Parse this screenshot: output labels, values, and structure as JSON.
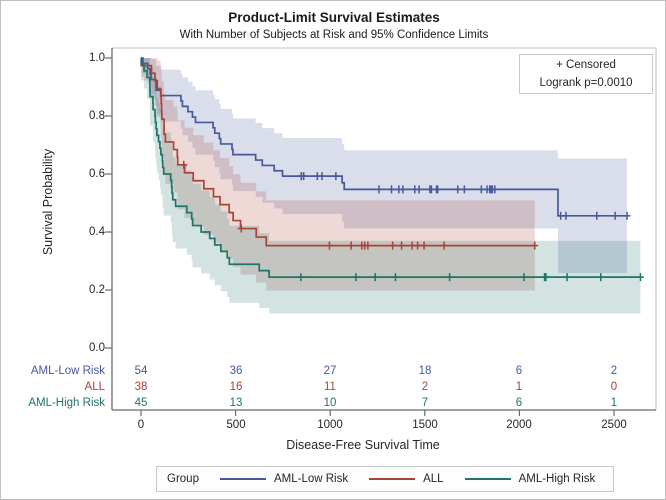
{
  "chart_data": {
    "type": "line",
    "subtype": "kaplan-meier-step",
    "title": "Product-Limit Survival Estimates",
    "subtitle": "With Number of Subjects at Risk and 95% Confidence Limits",
    "xlabel": "Disease-Free Survival Time",
    "ylabel": "Survival Probability",
    "xlim": [
      0,
      2500
    ],
    "ylim": [
      0.0,
      1.0
    ],
    "grid": false,
    "legend_position": "bottom",
    "censored_label": "+ Censored",
    "logrank_label": "Logrank p=0.0010",
    "x_ticks": [
      "0",
      "500",
      "1000",
      "1500",
      "2000",
      "2500"
    ],
    "y_ticks": [
      "1.0",
      "0.8",
      "0.6",
      "0.4",
      "0.2",
      "0.0"
    ],
    "series": [
      {
        "name": "AML-Low Risk",
        "color": "#47589C",
        "band_color": "rgba(71,88,156,0.20)",
        "end_time": 2569,
        "steps": [
          [
            0,
            1
          ],
          [
            10,
            0.9815
          ],
          [
            35,
            0.963
          ],
          [
            48,
            0.9444
          ],
          [
            53,
            0.9259
          ],
          [
            79,
            0.9074
          ],
          [
            80,
            0.8889
          ],
          [
            105,
            0.8704
          ],
          [
            211,
            0.8519
          ],
          [
            219,
            0.8333
          ],
          [
            248,
            0.8148
          ],
          [
            272,
            0.7963
          ],
          [
            288,
            0.7778
          ],
          [
            381,
            0.7593
          ],
          [
            390,
            0.7407
          ],
          [
            414,
            0.7222
          ],
          [
            421,
            0.7037
          ],
          [
            481,
            0.6852
          ],
          [
            486,
            0.6667
          ],
          [
            606,
            0.6481
          ],
          [
            641,
            0.6296
          ],
          [
            704,
            0.6111
          ],
          [
            748,
            0.5926
          ],
          [
            1063,
            0.5698
          ],
          [
            1074,
            0.547
          ],
          [
            2204,
            0.4558
          ]
        ],
        "censored": [
          [
            847,
            0.5926
          ],
          [
            848,
            0.5926
          ],
          [
            860,
            0.5926
          ],
          [
            932,
            0.5926
          ],
          [
            957,
            0.5926
          ],
          [
            1030,
            0.5926
          ],
          [
            1258,
            0.547
          ],
          [
            1324,
            0.547
          ],
          [
            1363,
            0.547
          ],
          [
            1384,
            0.547
          ],
          [
            1447,
            0.547
          ],
          [
            1470,
            0.547
          ],
          [
            1527,
            0.547
          ],
          [
            1535,
            0.547
          ],
          [
            1562,
            0.547
          ],
          [
            1568,
            0.547
          ],
          [
            1674,
            0.547
          ],
          [
            1709,
            0.547
          ],
          [
            1799,
            0.547
          ],
          [
            1829,
            0.547
          ],
          [
            1843,
            0.547
          ],
          [
            1850,
            0.547
          ],
          [
            1857,
            0.547
          ],
          [
            1870,
            0.547
          ],
          [
            2218,
            0.4558
          ],
          [
            2246,
            0.4558
          ],
          [
            2409,
            0.4558
          ],
          [
            2506,
            0.4558
          ],
          [
            2569,
            0.4558
          ]
        ],
        "ci": [
          [
            0,
            1,
            1
          ],
          [
            10,
            0.946,
            1
          ],
          [
            35,
            0.913,
            1
          ],
          [
            48,
            0.883,
            1
          ],
          [
            53,
            0.856,
            0.996
          ],
          [
            79,
            0.83,
            0.985
          ],
          [
            80,
            0.805,
            0.973
          ],
          [
            105,
            0.781,
            0.96
          ],
          [
            211,
            0.757,
            0.947
          ],
          [
            219,
            0.734,
            0.933
          ],
          [
            248,
            0.711,
            0.918
          ],
          [
            272,
            0.689,
            0.904
          ],
          [
            288,
            0.667,
            0.889
          ],
          [
            381,
            0.645,
            0.873
          ],
          [
            390,
            0.624,
            0.858
          ],
          [
            414,
            0.603,
            0.842
          ],
          [
            421,
            0.582,
            0.825
          ],
          [
            481,
            0.561,
            0.809
          ],
          [
            486,
            0.541,
            0.792
          ],
          [
            606,
            0.521,
            0.776
          ],
          [
            641,
            0.501,
            0.758
          ],
          [
            704,
            0.481,
            0.741
          ],
          [
            748,
            0.462,
            0.724
          ],
          [
            1063,
            0.436,
            0.703
          ],
          [
            1074,
            0.412,
            0.682
          ],
          [
            2204,
            0.258,
            0.654
          ]
        ]
      },
      {
        "name": "ALL",
        "color": "#A94338",
        "band_color": "rgba(169,67,56,0.20)",
        "end_time": 2081,
        "steps": [
          [
            0,
            1
          ],
          [
            1,
            0.9737
          ],
          [
            55,
            0.9474
          ],
          [
            74,
            0.9211
          ],
          [
            86,
            0.8947
          ],
          [
            104,
            0.8684
          ],
          [
            107,
            0.8421
          ],
          [
            109,
            0.8158
          ],
          [
            110,
            0.7895
          ],
          [
            122,
            0.7368
          ],
          [
            129,
            0.7105
          ],
          [
            172,
            0.6842
          ],
          [
            192,
            0.6579
          ],
          [
            194,
            0.6316
          ],
          [
            230,
            0.6041
          ],
          [
            276,
            0.5767
          ],
          [
            332,
            0.5492
          ],
          [
            383,
            0.5217
          ],
          [
            418,
            0.4943
          ],
          [
            466,
            0.4668
          ],
          [
            487,
            0.4394
          ],
          [
            526,
            0.4119
          ],
          [
            609,
            0.3825
          ],
          [
            662,
            0.3531
          ]
        ],
        "censored": [
          [
            226,
            0.6316
          ],
          [
            530,
            0.4119
          ],
          [
            996,
            0.3531
          ],
          [
            1111,
            0.3531
          ],
          [
            1167,
            0.3531
          ],
          [
            1182,
            0.3531
          ],
          [
            1199,
            0.3531
          ],
          [
            1330,
            0.3531
          ],
          [
            1377,
            0.3531
          ],
          [
            1433,
            0.3531
          ],
          [
            1462,
            0.3531
          ],
          [
            1496,
            0.3531
          ],
          [
            1602,
            0.3531
          ],
          [
            2081,
            0.3531
          ]
        ],
        "ci": [
          [
            0,
            1,
            1
          ],
          [
            1,
            0.923,
            1
          ],
          [
            55,
            0.876,
            1
          ],
          [
            74,
            0.835,
            1
          ],
          [
            86,
            0.797,
            0.992
          ],
          [
            104,
            0.761,
            0.976
          ],
          [
            107,
            0.726,
            0.958
          ],
          [
            109,
            0.693,
            0.939
          ],
          [
            110,
            0.66,
            0.919
          ],
          [
            122,
            0.597,
            0.877
          ],
          [
            129,
            0.566,
            0.855
          ],
          [
            172,
            0.536,
            0.832
          ],
          [
            192,
            0.507,
            0.809
          ],
          [
            194,
            0.478,
            0.785
          ],
          [
            230,
            0.448,
            0.76
          ],
          [
            276,
            0.419,
            0.734
          ],
          [
            332,
            0.39,
            0.708
          ],
          [
            383,
            0.362,
            0.682
          ],
          [
            418,
            0.334,
            0.655
          ],
          [
            466,
            0.306,
            0.627
          ],
          [
            487,
            0.28,
            0.599
          ],
          [
            526,
            0.253,
            0.57
          ],
          [
            609,
            0.225,
            0.54
          ],
          [
            662,
            0.198,
            0.509
          ]
        ]
      },
      {
        "name": "AML-High Risk",
        "color": "#1E7468",
        "band_color": "rgba(30,116,104,0.20)",
        "end_time": 2640,
        "steps": [
          [
            0,
            1
          ],
          [
            2,
            0.9778
          ],
          [
            16,
            0.9556
          ],
          [
            32,
            0.9333
          ],
          [
            47,
            0.8889
          ],
          [
            48,
            0.8667
          ],
          [
            63,
            0.8444
          ],
          [
            64,
            0.8222
          ],
          [
            74,
            0.8
          ],
          [
            76,
            0.7778
          ],
          [
            80,
            0.7556
          ],
          [
            84,
            0.7333
          ],
          [
            93,
            0.7111
          ],
          [
            100,
            0.6889
          ],
          [
            105,
            0.6667
          ],
          [
            113,
            0.6444
          ],
          [
            115,
            0.6222
          ],
          [
            120,
            0.6
          ],
          [
            157,
            0.5778
          ],
          [
            162,
            0.5556
          ],
          [
            164,
            0.5333
          ],
          [
            168,
            0.5111
          ],
          [
            183,
            0.4889
          ],
          [
            242,
            0.4667
          ],
          [
            268,
            0.4444
          ],
          [
            273,
            0.4222
          ],
          [
            318,
            0.4
          ],
          [
            363,
            0.3778
          ],
          [
            390,
            0.3556
          ],
          [
            422,
            0.3333
          ],
          [
            456,
            0.3111
          ],
          [
            467,
            0.2889
          ],
          [
            625,
            0.2667
          ],
          [
            677,
            0.2444
          ]
        ],
        "censored": [
          [
            845,
            0.2444
          ],
          [
            1136,
            0.2444
          ],
          [
            1238,
            0.2444
          ],
          [
            1345,
            0.2444
          ],
          [
            1631,
            0.2444
          ],
          [
            2024,
            0.2444
          ],
          [
            2133,
            0.2444
          ],
          [
            2140,
            0.2444
          ],
          [
            2252,
            0.2444
          ],
          [
            2430,
            0.2444
          ],
          [
            2640,
            0.2444
          ]
        ],
        "ci": [
          [
            0,
            1,
            1
          ],
          [
            2,
            0.935,
            1
          ],
          [
            16,
            0.895,
            1
          ],
          [
            32,
            0.86,
            1
          ],
          [
            47,
            0.797,
            0.981
          ],
          [
            48,
            0.767,
            0.966
          ],
          [
            63,
            0.739,
            0.95
          ],
          [
            64,
            0.711,
            0.934
          ],
          [
            74,
            0.683,
            0.917
          ],
          [
            76,
            0.656,
            0.899
          ],
          [
            80,
            0.63,
            0.881
          ],
          [
            84,
            0.604,
            0.863
          ],
          [
            93,
            0.579,
            0.844
          ],
          [
            100,
            0.554,
            0.824
          ],
          [
            105,
            0.529,
            0.804
          ],
          [
            113,
            0.505,
            0.784
          ],
          [
            115,
            0.481,
            0.764
          ],
          [
            120,
            0.457,
            0.743
          ],
          [
            157,
            0.433,
            0.722
          ],
          [
            162,
            0.41,
            0.701
          ],
          [
            164,
            0.388,
            0.679
          ],
          [
            168,
            0.365,
            0.657
          ],
          [
            183,
            0.343,
            0.635
          ],
          [
            242,
            0.321,
            0.612
          ],
          [
            268,
            0.299,
            0.59
          ],
          [
            273,
            0.278,
            0.567
          ],
          [
            318,
            0.257,
            0.543
          ],
          [
            363,
            0.236,
            0.519
          ],
          [
            390,
            0.216,
            0.495
          ],
          [
            422,
            0.196,
            0.471
          ],
          [
            456,
            0.176,
            0.446
          ],
          [
            467,
            0.156,
            0.421
          ],
          [
            625,
            0.138,
            0.396
          ],
          [
            677,
            0.119,
            0.37
          ]
        ]
      }
    ],
    "at_risk": {
      "times": [
        0,
        500,
        1000,
        1500,
        2000,
        2500
      ],
      "rows": [
        {
          "label": "AML-Low Risk",
          "values": [
            54,
            36,
            27,
            18,
            6,
            2
          ]
        },
        {
          "label": "ALL",
          "values": [
            38,
            16,
            11,
            2,
            1,
            0
          ]
        },
        {
          "label": "AML-High Risk",
          "values": [
            45,
            13,
            10,
            7,
            6,
            1
          ]
        }
      ]
    }
  },
  "bottom_legend": {
    "title": "Group"
  }
}
